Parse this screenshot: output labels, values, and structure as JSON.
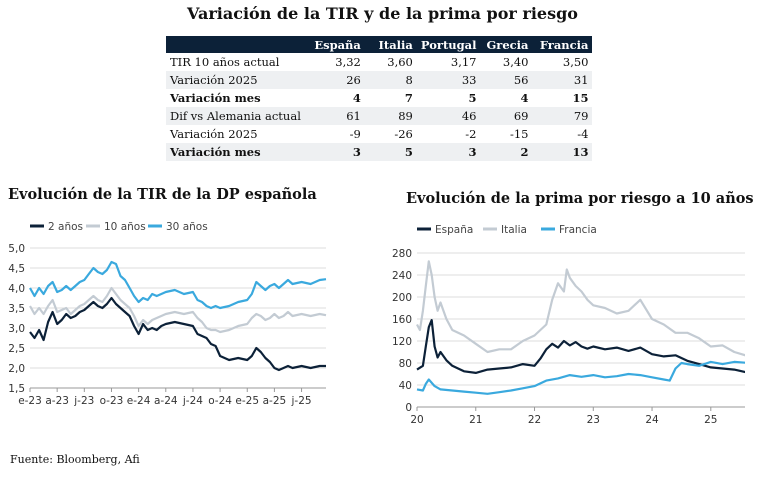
{
  "title": "Variación de la TIR y de la prima por riesgo",
  "table": {
    "columns": [
      "España",
      "Italia",
      "Portugal",
      "Grecia",
      "Francia"
    ],
    "rows": [
      {
        "label": "TIR 10 años actual",
        "values": [
          "3,32",
          "3,60",
          "3,17",
          "3,40",
          "3,50"
        ],
        "bold": false,
        "shade": false
      },
      {
        "label": "Variación 2025",
        "values": [
          "26",
          "8",
          "33",
          "56",
          "31"
        ],
        "bold": false,
        "shade": true
      },
      {
        "label": "Variación mes",
        "values": [
          "4",
          "7",
          "5",
          "4",
          "15"
        ],
        "bold": true,
        "shade": false
      },
      {
        "label": "Dif vs Alemania actual",
        "values": [
          "61",
          "89",
          "46",
          "69",
          "79"
        ],
        "bold": false,
        "shade": true
      },
      {
        "label": "Variación 2025",
        "values": [
          "-9",
          "-26",
          "-2",
          "-15",
          "-4"
        ],
        "bold": false,
        "shade": false
      },
      {
        "label": "Variación mes",
        "values": [
          "3",
          "5",
          "3",
          "2",
          "13"
        ],
        "bold": true,
        "shade": true
      }
    ]
  },
  "source": "Fuente: Bloomberg, Afi",
  "colors": {
    "dark": "#0c2138",
    "light": "#c3cbd3",
    "blue": "#3aa9de",
    "grid": "#d8d8d8"
  },
  "chart_data": [
    {
      "type": "line",
      "title": "Evolución de la TIR de la DP española",
      "xlabel": "",
      "ylabel": "",
      "ylim": [
        1.5,
        5.0
      ],
      "yticks": [
        "5,0",
        "4,5",
        "4,0",
        "3,5",
        "3,0",
        "2,5",
        "2,0",
        "1,5"
      ],
      "ytick_values": [
        5.0,
        4.5,
        4.0,
        3.5,
        3.0,
        2.5,
        2.0,
        1.5
      ],
      "xticks": [
        "e-23",
        "a-23",
        "j-23",
        "o-23",
        "e-24",
        "a-24",
        "j-24",
        "o-24",
        "e-25",
        "a-25",
        "j-25"
      ],
      "xtick_values": [
        0,
        3,
        6,
        9,
        12,
        15,
        18,
        21,
        24,
        27,
        30
      ],
      "xlim": [
        0,
        32.7
      ],
      "grid": "horizontal",
      "legend_position": "top-left",
      "series": [
        {
          "name": "2 años",
          "color": "#0c2138",
          "x": [
            0,
            0.5,
            1,
            1.5,
            2,
            2.5,
            3,
            3.5,
            4,
            4.5,
            5,
            5.5,
            6,
            6.5,
            7,
            7.5,
            8,
            8.5,
            9,
            9.5,
            10,
            10.5,
            11,
            11.5,
            12,
            12.5,
            13,
            13.5,
            14,
            14.5,
            15,
            16,
            17,
            18,
            18.5,
            19,
            19.5,
            20,
            20.5,
            21,
            22,
            23,
            24,
            24.5,
            25,
            25.5,
            26,
            26.5,
            27,
            27.5,
            28,
            28.5,
            29,
            30,
            31,
            32,
            32.7
          ],
          "y": [
            2.9,
            2.75,
            2.95,
            2.7,
            3.15,
            3.4,
            3.1,
            3.2,
            3.35,
            3.25,
            3.3,
            3.4,
            3.45,
            3.55,
            3.65,
            3.55,
            3.5,
            3.6,
            3.75,
            3.6,
            3.5,
            3.4,
            3.3,
            3.05,
            2.85,
            3.1,
            2.95,
            3.0,
            2.95,
            3.05,
            3.1,
            3.15,
            3.1,
            3.05,
            2.85,
            2.8,
            2.75,
            2.6,
            2.55,
            2.3,
            2.2,
            2.25,
            2.2,
            2.3,
            2.5,
            2.4,
            2.25,
            2.15,
            2.0,
            1.95,
            2.0,
            2.05,
            2.0,
            2.05,
            2.0,
            2.05,
            2.05
          ]
        },
        {
          "name": "10 años",
          "color": "#c3cbd3",
          "x": [
            0,
            0.5,
            1,
            1.5,
            2,
            2.5,
            3,
            3.5,
            4,
            4.5,
            5,
            5.5,
            6,
            6.5,
            7,
            7.5,
            8,
            8.5,
            9,
            9.5,
            10,
            10.5,
            11,
            11.5,
            12,
            12.5,
            13,
            13.5,
            14,
            14.5,
            15,
            16,
            17,
            18,
            18.5,
            19,
            19.5,
            20,
            20.5,
            21,
            22,
            23,
            24,
            24.5,
            25,
            25.5,
            26,
            26.5,
            27,
            27.5,
            28,
            28.5,
            29,
            30,
            31,
            32,
            32.7
          ],
          "y": [
            3.55,
            3.35,
            3.5,
            3.35,
            3.55,
            3.7,
            3.4,
            3.45,
            3.5,
            3.35,
            3.45,
            3.55,
            3.6,
            3.7,
            3.8,
            3.7,
            3.65,
            3.8,
            4.0,
            3.85,
            3.7,
            3.6,
            3.5,
            3.3,
            3.05,
            3.2,
            3.1,
            3.2,
            3.25,
            3.3,
            3.35,
            3.4,
            3.35,
            3.4,
            3.25,
            3.15,
            3.0,
            2.95,
            2.95,
            2.9,
            2.95,
            3.05,
            3.1,
            3.25,
            3.35,
            3.3,
            3.2,
            3.25,
            3.35,
            3.25,
            3.3,
            3.4,
            3.3,
            3.35,
            3.3,
            3.35,
            3.32
          ]
        },
        {
          "name": "30 años",
          "color": "#3aa9de",
          "x": [
            0,
            0.5,
            1,
            1.5,
            2,
            2.5,
            3,
            3.5,
            4,
            4.5,
            5,
            5.5,
            6,
            6.5,
            7,
            7.5,
            8,
            8.5,
            9,
            9.5,
            10,
            10.5,
            11,
            11.5,
            12,
            12.5,
            13,
            13.5,
            14,
            14.5,
            15,
            16,
            17,
            18,
            18.5,
            19,
            19.5,
            20,
            20.5,
            21,
            22,
            23,
            24,
            24.5,
            25,
            25.5,
            26,
            26.5,
            27,
            27.5,
            28,
            28.5,
            29,
            30,
            31,
            32,
            32.7
          ],
          "y": [
            4.0,
            3.8,
            4.0,
            3.85,
            4.05,
            4.15,
            3.9,
            3.95,
            4.05,
            3.95,
            4.05,
            4.15,
            4.2,
            4.35,
            4.5,
            4.4,
            4.35,
            4.45,
            4.65,
            4.6,
            4.3,
            4.2,
            4.0,
            3.8,
            3.65,
            3.75,
            3.7,
            3.85,
            3.8,
            3.85,
            3.9,
            3.95,
            3.85,
            3.9,
            3.7,
            3.65,
            3.55,
            3.5,
            3.55,
            3.5,
            3.55,
            3.65,
            3.7,
            3.85,
            4.15,
            4.05,
            3.95,
            4.05,
            4.1,
            4.0,
            4.1,
            4.2,
            4.1,
            4.15,
            4.1,
            4.2,
            4.22
          ]
        }
      ]
    },
    {
      "type": "line",
      "title": "Evolución de la prima por riesgo a 10 años",
      "xlabel": "",
      "ylabel": "",
      "ylim": [
        0,
        280
      ],
      "yticks": [
        "280",
        "240",
        "200",
        "160",
        "120",
        "80",
        "40",
        "0"
      ],
      "ytick_values": [
        280,
        240,
        200,
        160,
        120,
        80,
        40,
        0
      ],
      "xticks": [
        "20",
        "21",
        "22",
        "23",
        "24",
        "25"
      ],
      "xtick_values": [
        2020,
        2021,
        2022,
        2023,
        2024,
        2025
      ],
      "xlim": [
        2020,
        2025.65
      ],
      "grid": "horizontal",
      "legend_position": "top-left",
      "series": [
        {
          "name": "España",
          "color": "#0c2138",
          "x": [
            2020.0,
            2020.1,
            2020.15,
            2020.2,
            2020.25,
            2020.3,
            2020.35,
            2020.4,
            2020.5,
            2020.6,
            2020.7,
            2020.8,
            2021.0,
            2021.2,
            2021.4,
            2021.6,
            2021.8,
            2022.0,
            2022.1,
            2022.2,
            2022.3,
            2022.4,
            2022.5,
            2022.6,
            2022.7,
            2022.8,
            2022.9,
            2023.0,
            2023.2,
            2023.4,
            2023.6,
            2023.8,
            2024.0,
            2024.2,
            2024.4,
            2024.6,
            2024.8,
            2025.0,
            2025.2,
            2025.4,
            2025.65
          ],
          "y": [
            68,
            75,
            110,
            145,
            158,
            110,
            90,
            100,
            85,
            75,
            70,
            65,
            62,
            68,
            70,
            72,
            78,
            75,
            88,
            105,
            115,
            108,
            120,
            112,
            118,
            110,
            106,
            110,
            105,
            108,
            102,
            108,
            96,
            92,
            94,
            84,
            78,
            72,
            70,
            68,
            62
          ]
        },
        {
          "name": "Italia",
          "color": "#c3cbd3",
          "x": [
            2020.0,
            2020.05,
            2020.1,
            2020.15,
            2020.2,
            2020.25,
            2020.3,
            2020.35,
            2020.4,
            2020.5,
            2020.6,
            2020.8,
            2021.0,
            2021.2,
            2021.4,
            2021.6,
            2021.8,
            2022.0,
            2022.2,
            2022.3,
            2022.4,
            2022.5,
            2022.55,
            2022.6,
            2022.7,
            2022.8,
            2022.9,
            2023.0,
            2023.2,
            2023.4,
            2023.6,
            2023.8,
            2024.0,
            2024.2,
            2024.4,
            2024.6,
            2024.8,
            2025.0,
            2025.2,
            2025.4,
            2025.65
          ],
          "y": [
            150,
            140,
            175,
            220,
            265,
            240,
            200,
            175,
            190,
            160,
            140,
            130,
            115,
            100,
            105,
            105,
            120,
            130,
            150,
            195,
            225,
            210,
            250,
            235,
            220,
            210,
            195,
            185,
            180,
            170,
            175,
            195,
            160,
            150,
            135,
            135,
            125,
            110,
            112,
            100,
            92
          ]
        },
        {
          "name": "Francia",
          "color": "#3aa9de",
          "x": [
            2020.0,
            2020.1,
            2020.15,
            2020.2,
            2020.3,
            2020.4,
            2020.6,
            2020.8,
            2021.0,
            2021.2,
            2021.4,
            2021.6,
            2021.8,
            2022.0,
            2022.2,
            2022.4,
            2022.6,
            2022.8,
            2023.0,
            2023.2,
            2023.4,
            2023.6,
            2023.8,
            2024.0,
            2024.2,
            2024.3,
            2024.4,
            2024.5,
            2024.6,
            2024.8,
            2025.0,
            2025.2,
            2025.4,
            2025.65
          ],
          "y": [
            32,
            30,
            42,
            50,
            38,
            32,
            30,
            28,
            26,
            24,
            27,
            30,
            34,
            38,
            48,
            52,
            58,
            55,
            58,
            54,
            56,
            60,
            58,
            54,
            50,
            48,
            70,
            80,
            78,
            75,
            82,
            78,
            82,
            80
          ]
        }
      ]
    }
  ]
}
